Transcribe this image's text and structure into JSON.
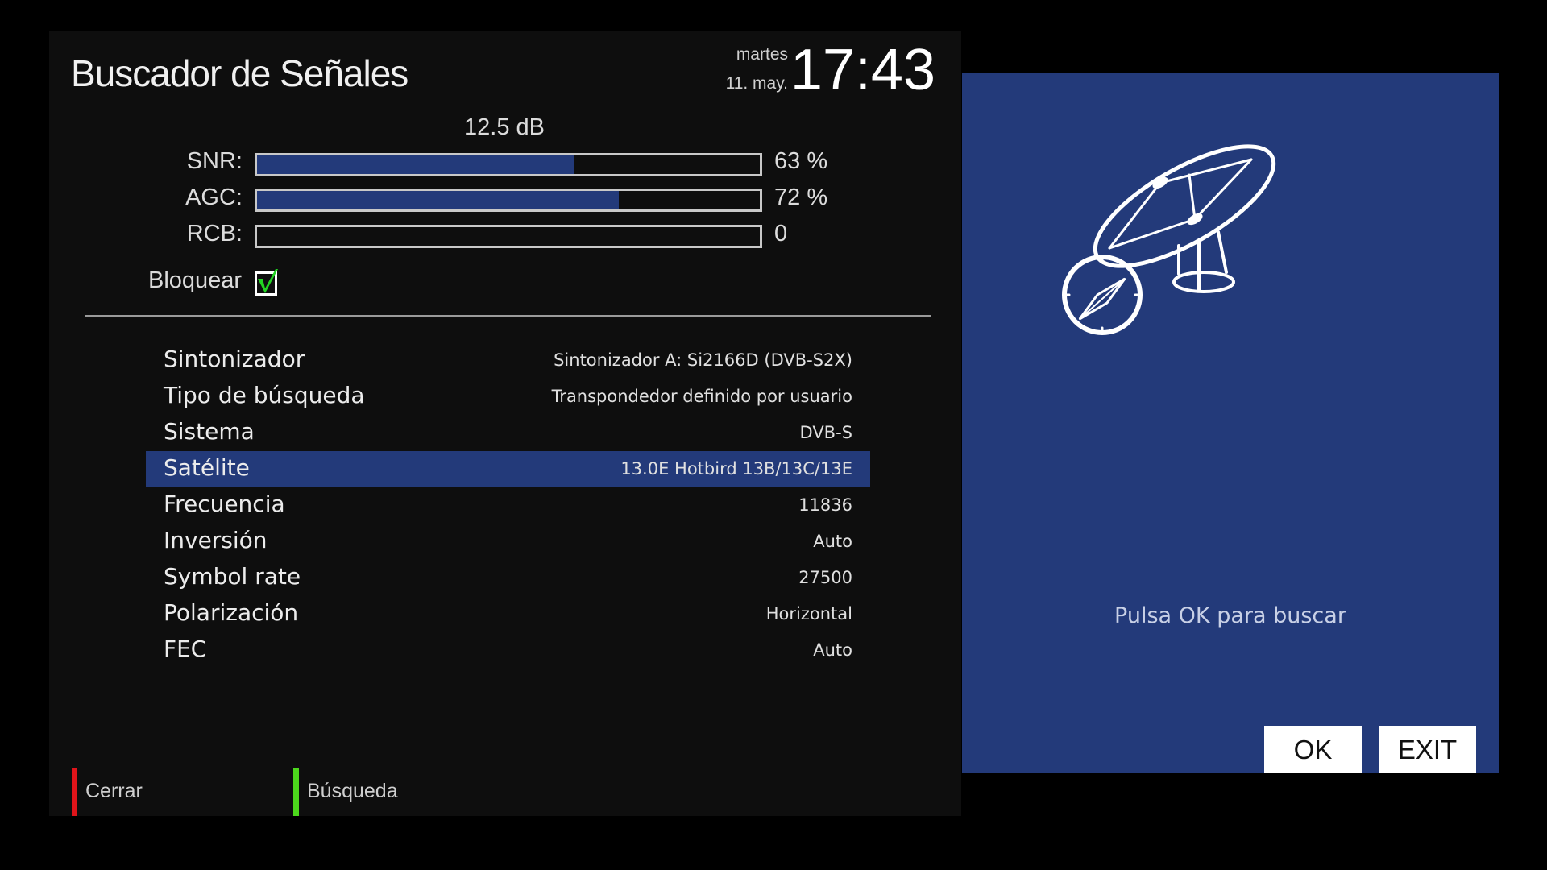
{
  "header": {
    "title": "Buscador de Señales",
    "day": "martes",
    "date": "11. may.",
    "time": "17:43"
  },
  "signal": {
    "level": "12.5 dB",
    "bars": [
      {
        "label": "SNR:",
        "value_text": "63 %",
        "percent": 63
      },
      {
        "label": "AGC:",
        "value_text": "72 %",
        "percent": 72
      },
      {
        "label": "RCB:",
        "value_text": "0",
        "percent": 0
      }
    ],
    "lock": {
      "label": "Bloquear",
      "checked": true
    }
  },
  "settings": [
    {
      "label": "Sintonizador",
      "value": "Sintonizador A: Si2166D (DVB-S2X)"
    },
    {
      "label": "Tipo de búsqueda",
      "value": "Transpondedor definido por usuario"
    },
    {
      "label": "Sistema",
      "value": "DVB-S"
    },
    {
      "label": "Satélite",
      "value": "13.0E Hotbird 13B/13C/13E",
      "selected": true
    },
    {
      "label": "Frecuencia",
      "value": "11836"
    },
    {
      "label": "Inversión",
      "value": "Auto"
    },
    {
      "label": "Symbol rate",
      "value": "27500"
    },
    {
      "label": "Polarización",
      "value": "Horizontal"
    },
    {
      "label": "FEC",
      "value": "Auto"
    }
  ],
  "footer": {
    "red_label": "Cerrar",
    "green_label": "Búsqueda",
    "red_color": "#e0141a",
    "green_color": "#4cd81c"
  },
  "dialog": {
    "icon": "satellite-dish-compass-icon",
    "hint": "Pulsa OK para buscar",
    "ok_label": "OK",
    "exit_label": "EXIT",
    "bg_color": "#233a7a"
  }
}
